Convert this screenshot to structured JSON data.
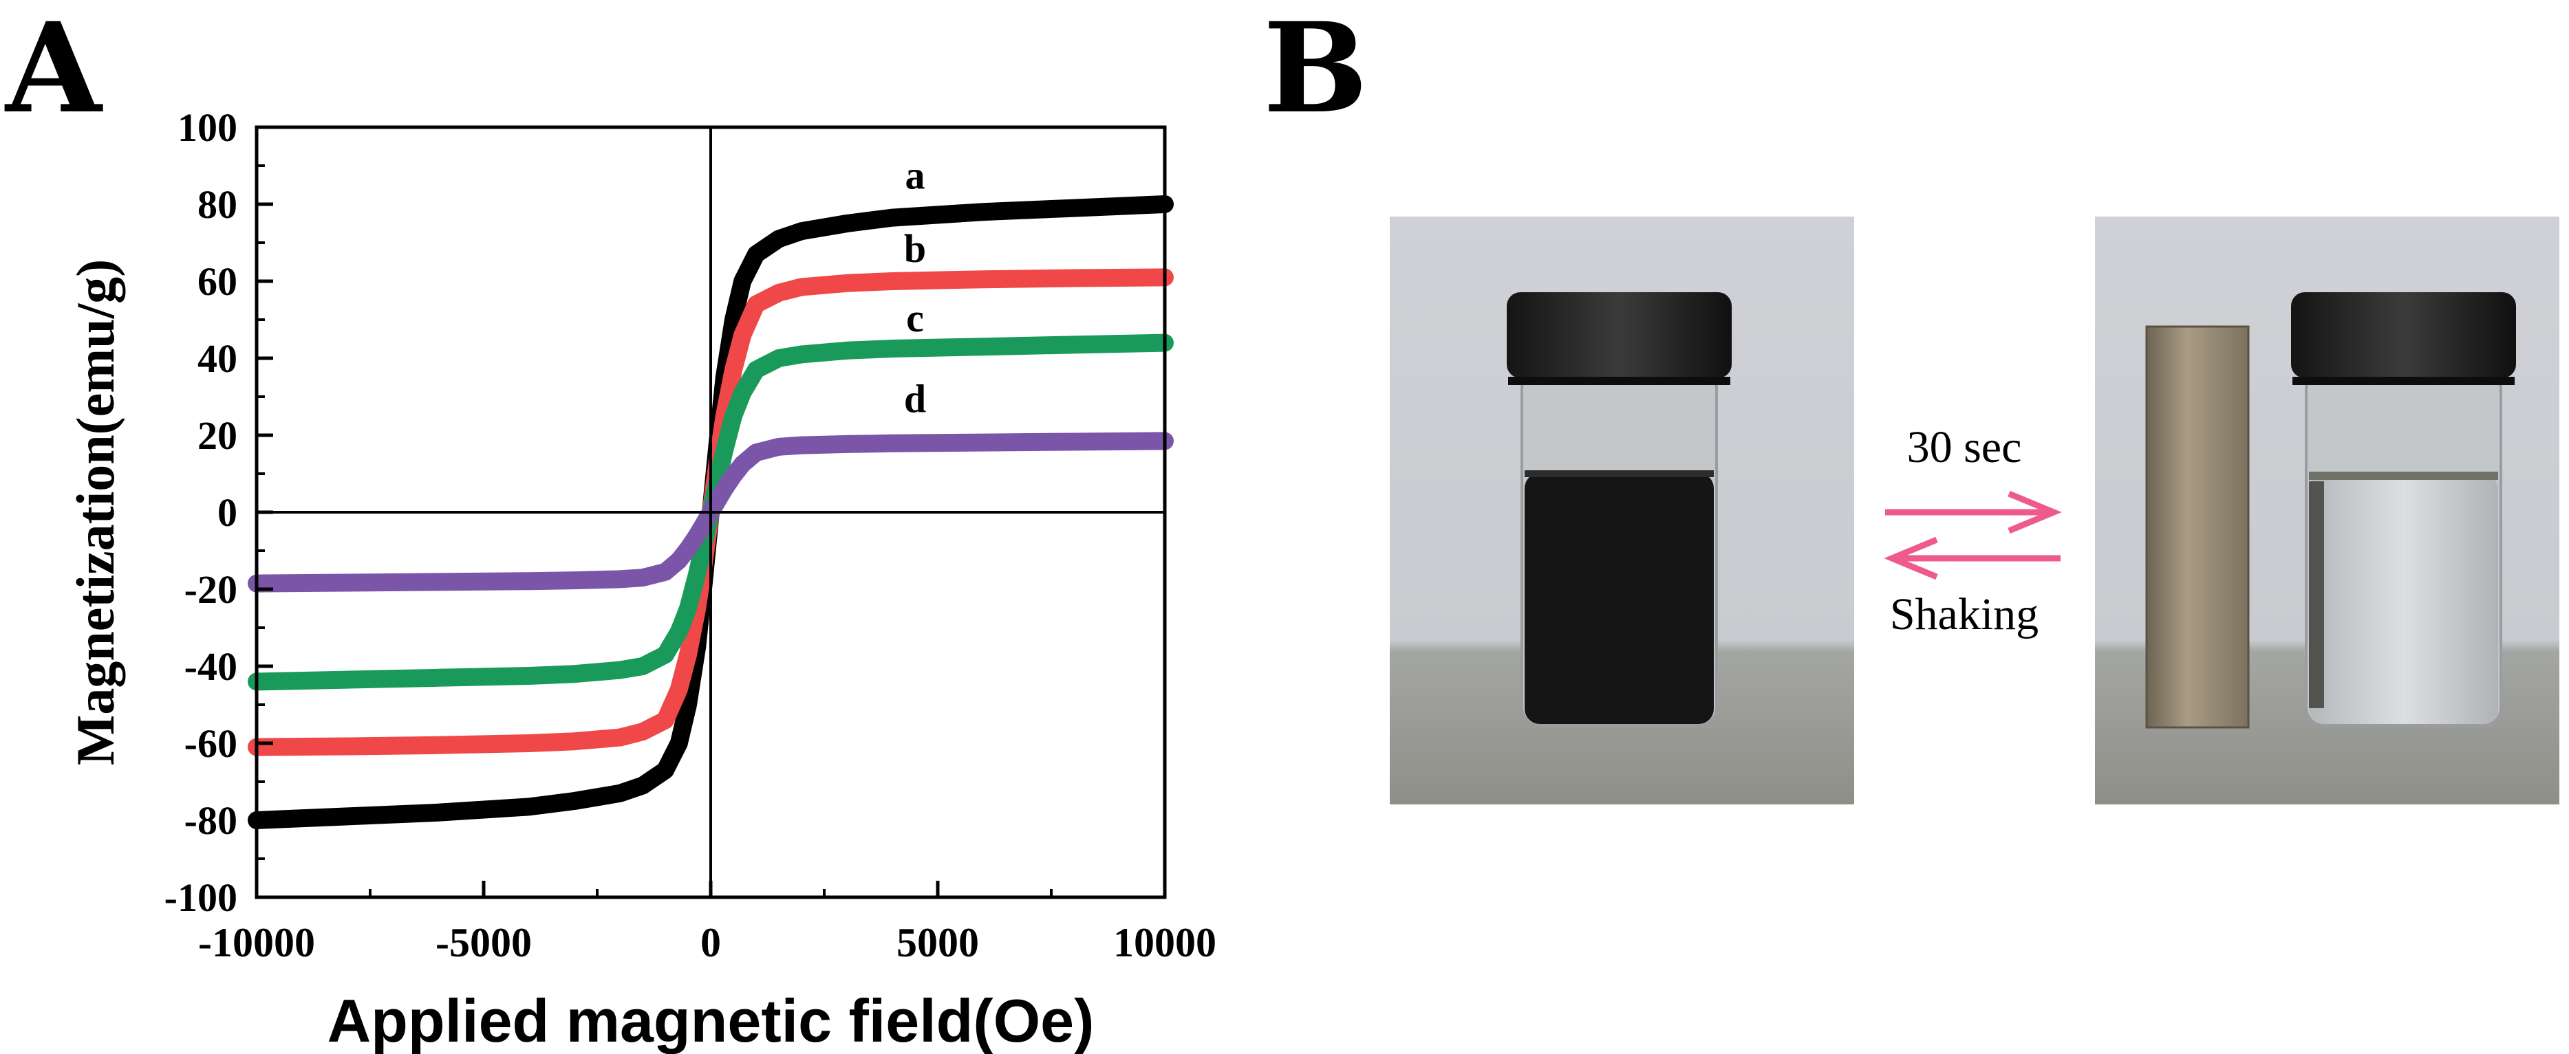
{
  "panel_labels": {
    "a": "A",
    "b": "B"
  },
  "chart_data": {
    "type": "line",
    "title": "",
    "xlabel": "Applied magnetic field(Oe)",
    "ylabel": "Magnetization(emu/g)",
    "xlim": [
      -10000,
      10000
    ],
    "ylim": [
      -100,
      100
    ],
    "xticks": [
      -10000,
      -5000,
      0,
      5000,
      10000
    ],
    "xtick_labels": [
      "-10000",
      "-5000",
      "0",
      "5000",
      "10000"
    ],
    "yticks": [
      -100,
      -80,
      -60,
      -40,
      -20,
      0,
      20,
      40,
      60,
      80,
      100
    ],
    "ytick_labels": [
      "-100",
      "-80",
      "-60",
      "-40",
      "-20",
      "0",
      "20",
      "40",
      "60",
      "80",
      "100"
    ],
    "grid": false,
    "series": [
      {
        "name": "a",
        "color": "#000000",
        "x": [
          -10000,
          -8000,
          -6000,
          -4000,
          -3000,
          -2000,
          -1500,
          -1000,
          -700,
          -500,
          -300,
          -150,
          0,
          150,
          300,
          500,
          700,
          1000,
          1500,
          2000,
          3000,
          4000,
          6000,
          8000,
          10000
        ],
        "y": [
          -80,
          -79,
          -78,
          -76.5,
          -75,
          -73,
          -71,
          -67,
          -60,
          -50,
          -35,
          -18,
          0,
          18,
          35,
          50,
          60,
          67,
          71,
          73,
          75,
          76.5,
          78,
          79,
          80
        ]
      },
      {
        "name": "b",
        "color": "#f04848",
        "x": [
          -10000,
          -8000,
          -6000,
          -4000,
          -3000,
          -2000,
          -1500,
          -1000,
          -700,
          -500,
          -300,
          -150,
          0,
          150,
          300,
          500,
          700,
          1000,
          1500,
          2000,
          3000,
          4000,
          6000,
          8000,
          10000
        ],
        "y": [
          -61,
          -60.8,
          -60.5,
          -60,
          -59.5,
          -58.5,
          -57,
          -54,
          -46,
          -37,
          -25,
          -13,
          0,
          13,
          25,
          37,
          46,
          54,
          57,
          58.5,
          59.5,
          60,
          60.5,
          60.8,
          61
        ]
      },
      {
        "name": "c",
        "color": "#1a9a5a",
        "x": [
          -10000,
          -8000,
          -6000,
          -4000,
          -3000,
          -2000,
          -1500,
          -1000,
          -700,
          -500,
          -300,
          -150,
          0,
          150,
          300,
          500,
          700,
          1000,
          1500,
          2000,
          3000,
          4000,
          6000,
          8000,
          10000
        ],
        "y": [
          -44,
          -43.5,
          -43,
          -42.5,
          -42,
          -41,
          -40,
          -37,
          -31,
          -25,
          -16,
          -8,
          0,
          8,
          16,
          25,
          31,
          37,
          40,
          41,
          42,
          42.5,
          43,
          43.5,
          44
        ]
      },
      {
        "name": "d",
        "color": "#7a55a8",
        "x": [
          -10000,
          -8000,
          -6000,
          -4000,
          -3000,
          -2000,
          -1500,
          -1000,
          -700,
          -500,
          -300,
          -150,
          0,
          150,
          300,
          500,
          700,
          1000,
          1500,
          2000,
          3000,
          4000,
          6000,
          8000,
          10000
        ],
        "y": [
          -18.5,
          -18.3,
          -18.1,
          -17.9,
          -17.7,
          -17.4,
          -17,
          -15.5,
          -12.5,
          -9.5,
          -6,
          -3,
          0,
          3,
          6,
          9.5,
          12.5,
          15.5,
          17,
          17.4,
          17.7,
          17.9,
          18.1,
          18.3,
          18.5
        ]
      }
    ],
    "curve_labels": [
      {
        "text": "a",
        "x": 4500,
        "y": 84
      },
      {
        "text": "b",
        "x": 4500,
        "y": 65
      },
      {
        "text": "c",
        "x": 4500,
        "y": 47
      },
      {
        "text": "d",
        "x": 4500,
        "y": 26
      }
    ]
  },
  "photo": {
    "arrow_top_label": "30 sec",
    "arrow_bottom_label": "Shaking",
    "arrow_color": "#ee5a8e"
  }
}
